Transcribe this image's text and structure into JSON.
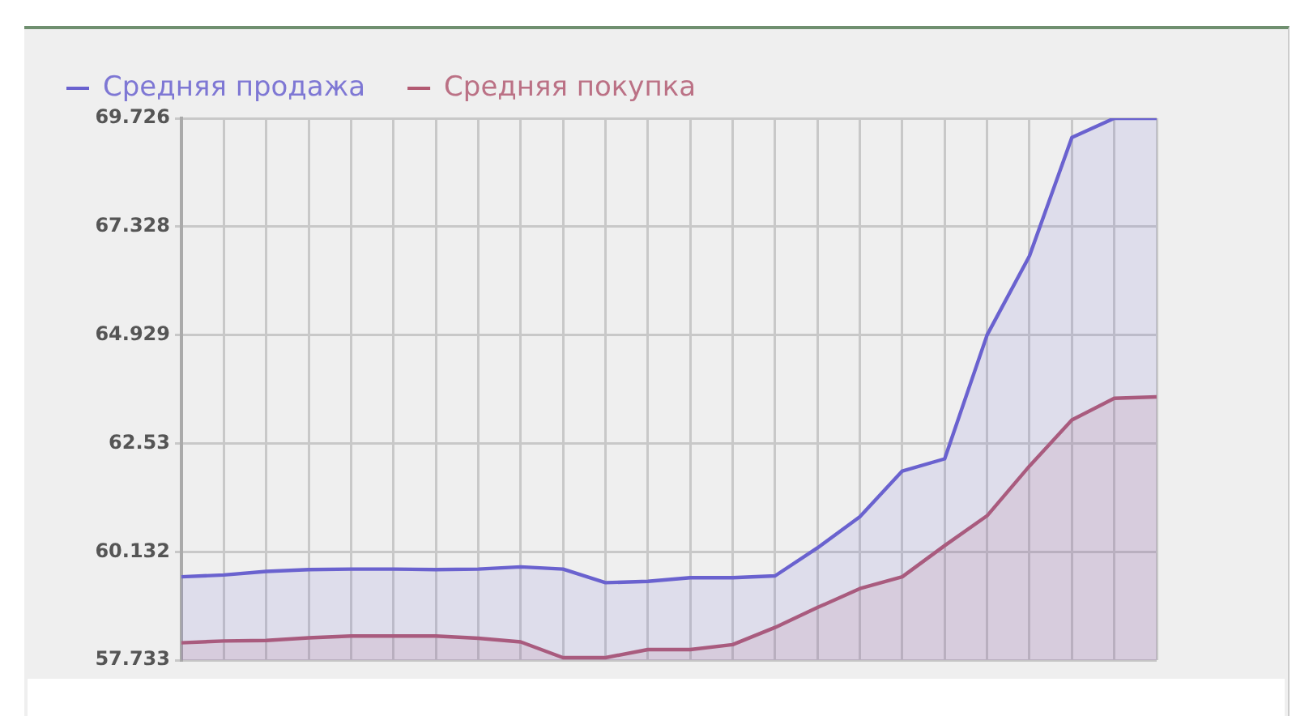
{
  "chart_data": {
    "type": "area",
    "categories": [
      null,
      null,
      null,
      null,
      null,
      null,
      null,
      null,
      null,
      null,
      null,
      null,
      null,
      null,
      null,
      null,
      null,
      null,
      null,
      null,
      null,
      null,
      null,
      null
    ],
    "series": [
      {
        "name": "Средняя продажа",
        "color": "#6a62cf",
        "values": [
          59.58,
          59.62,
          59.7,
          59.74,
          59.75,
          59.75,
          59.74,
          59.75,
          59.8,
          59.75,
          59.45,
          59.48,
          59.56,
          59.56,
          59.6,
          60.22,
          60.91,
          61.92,
          62.19,
          64.93,
          66.68,
          69.3,
          69.726,
          69.726
        ]
      },
      {
        "name": "Средняя покупка",
        "color": "#b25a72",
        "values": [
          58.12,
          58.16,
          58.17,
          58.23,
          58.27,
          58.27,
          58.27,
          58.22,
          58.14,
          57.79,
          57.79,
          57.97,
          57.97,
          58.08,
          58.46,
          58.9,
          59.32,
          59.58,
          60.27,
          60.93,
          62.03,
          63.05,
          63.53,
          63.56
        ]
      }
    ],
    "ylim": [
      57.733,
      69.726
    ],
    "yticks": [
      57.733,
      60.132,
      62.53,
      64.929,
      67.328,
      69.726
    ],
    "grid": true,
    "legend": "top left",
    "marker": "none"
  }
}
